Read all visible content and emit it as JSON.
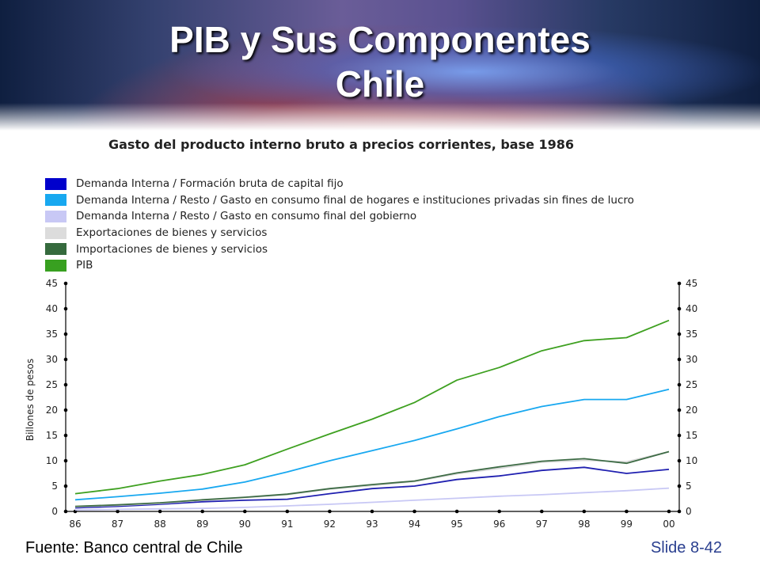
{
  "slide": {
    "title_lines": [
      "PIB y Sus Componentes",
      "Chile"
    ],
    "source": "Fuente: Banco central de Chile",
    "slide_number": "Slide 8-42"
  },
  "chart_data": {
    "type": "line",
    "title": "Gasto del producto interno bruto a precios corrientes, base 1986",
    "ylabel": "Billones de pesos",
    "xlabel": "",
    "x": [
      "86",
      "87",
      "88",
      "89",
      "90",
      "91",
      "92",
      "93",
      "94",
      "95",
      "96",
      "97",
      "98",
      "99",
      "00"
    ],
    "ylim": [
      0,
      45
    ],
    "yticks": [
      0,
      5,
      10,
      15,
      20,
      25,
      30,
      35,
      40,
      45
    ],
    "grid": false,
    "legend_position": "top",
    "series": [
      {
        "name": "Demanda Interna / Formación bruta de capital fijo",
        "color": "#2020b0",
        "values": [
          0.7,
          1.0,
          1.4,
          1.9,
          2.2,
          2.4,
          3.5,
          4.5,
          5.0,
          6.3,
          7.0,
          8.1,
          8.7,
          7.5,
          8.3
        ]
      },
      {
        "name": "Demanda Interna / Resto / Gasto en consumo final de hogares e instituciones privadas sin fines de lucro",
        "color": "#18a8f0",
        "values": [
          2.3,
          2.9,
          3.6,
          4.4,
          5.8,
          7.8,
          10.0,
          12.0,
          14.0,
          16.3,
          18.7,
          20.7,
          22.1,
          22.1,
          24.1
        ]
      },
      {
        "name": "Demanda Interna / Resto / Gasto en consumo final del gobierno",
        "color": "#c8c8f5",
        "values": [
          0.3,
          0.4,
          0.5,
          0.6,
          0.8,
          1.1,
          1.4,
          1.8,
          2.2,
          2.6,
          3.0,
          3.3,
          3.7,
          4.1,
          4.6
        ]
      },
      {
        "name": "Exportaciones de bienes y servicios",
        "color": "#d9d9d9",
        "values": [
          0.9,
          1.2,
          1.6,
          2.2,
          2.7,
          3.3,
          4.4,
          5.1,
          5.9,
          7.4,
          8.5,
          9.7,
          10.1,
          9.8,
          11.8
        ]
      },
      {
        "name": "Importaciones de bienes y servicios",
        "color": "#3d6b45",
        "values": [
          1.0,
          1.3,
          1.7,
          2.3,
          2.8,
          3.4,
          4.5,
          5.3,
          6.0,
          7.6,
          8.8,
          9.9,
          10.4,
          9.5,
          11.8
        ]
      },
      {
        "name": "PIB",
        "color": "#3ea020",
        "values": [
          3.5,
          4.5,
          6.0,
          7.3,
          9.2,
          12.3,
          15.3,
          18.2,
          21.5,
          25.9,
          28.4,
          31.7,
          33.7,
          34.3,
          37.7
        ]
      }
    ]
  }
}
